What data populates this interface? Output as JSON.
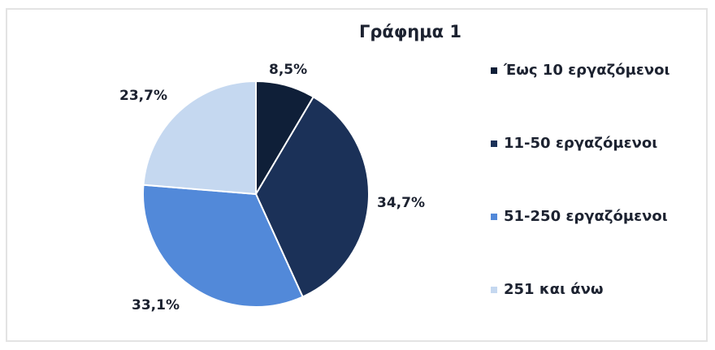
{
  "chart_data": {
    "type": "pie",
    "title": "Γράφημα 1",
    "categories": [
      "Έως 10 εργαζόμενοι",
      "11-50 εργαζόμενοι",
      "51-250 εργαζόμενοι",
      "251 και άνω"
    ],
    "values": [
      8.5,
      34.7,
      33.1,
      23.7
    ],
    "value_labels": [
      "8,5%",
      "34,7%",
      "33,1%",
      "23,7%"
    ],
    "colors": [
      "#0f1f38",
      "#1b3158",
      "#5289d9",
      "#c5d8f0"
    ],
    "legend_position": "right",
    "start_angle": "12 o'clock, clockwise"
  },
  "title": "Γράφημα 1",
  "labels": {
    "s0": "8,5%",
    "s1": "34,7%",
    "s2": "33,1%",
    "s3": "23,7%"
  },
  "legend": [
    {
      "label": "Έως 10 εργαζόμενοι",
      "color": "#0f1f38"
    },
    {
      "label": "11-50 εργαζόμενοι",
      "color": "#1b3158"
    },
    {
      "label": "51-250 εργαζόμενοι",
      "color": "#5289d9"
    },
    {
      "label": "251 και άνω",
      "color": "#c5d8f0"
    }
  ]
}
